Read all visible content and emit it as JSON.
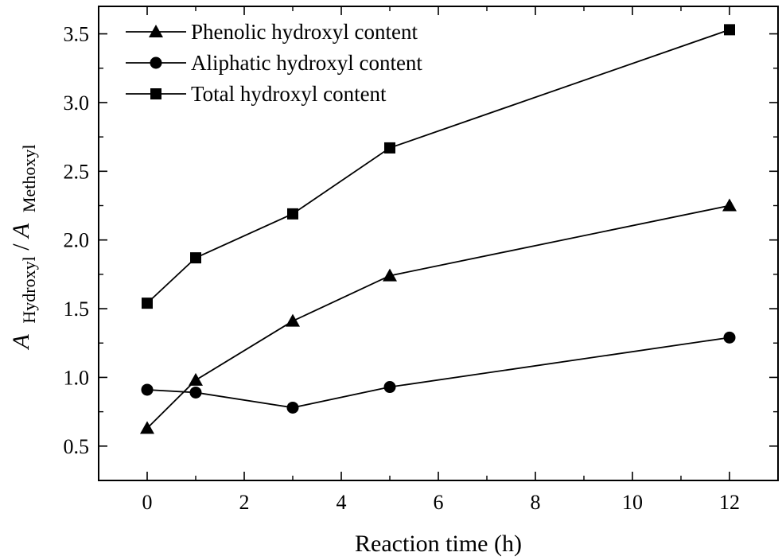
{
  "chart_data": {
    "type": "line",
    "title": "",
    "xlabel": "Reaction time (h)",
    "ylabel": {
      "first_symbol": "A",
      "first_subscript": "Hydroxyl",
      "separator": " /",
      "second_symbol": "A",
      "second_subscript": "Methoxyl"
    },
    "xlim": [
      -1,
      13
    ],
    "ylim": [
      0.25,
      3.7
    ],
    "x_ticks": [
      0,
      2,
      4,
      6,
      8,
      10,
      12
    ],
    "x_tick_labels": [
      "0",
      "2",
      "4",
      "6",
      "8",
      "10",
      "12"
    ],
    "y_ticks": [
      0.5,
      1.0,
      1.5,
      2.0,
      2.5,
      3.0,
      3.5
    ],
    "y_tick_labels": [
      "0.5",
      "1.0",
      "1.5",
      "2.0",
      "2.5",
      "3.0",
      "3.5"
    ],
    "grid": false,
    "legend_position": "top-left",
    "x": [
      0,
      1,
      3,
      5,
      12
    ],
    "series": [
      {
        "name": "Phenolic hydroxyl content",
        "marker": "triangle",
        "values": [
          0.63,
          0.98,
          1.41,
          1.74,
          2.25
        ]
      },
      {
        "name": "Aliphatic hydroxyl content",
        "marker": "circle",
        "values": [
          0.91,
          0.89,
          0.78,
          0.93,
          1.29
        ]
      },
      {
        "name": "Total hydroxyl content",
        "marker": "square",
        "values": [
          1.54,
          1.87,
          2.19,
          2.67,
          3.53
        ]
      }
    ],
    "colors": {
      "line": "#000000",
      "marker": "#000000",
      "axis": "#000000"
    }
  }
}
